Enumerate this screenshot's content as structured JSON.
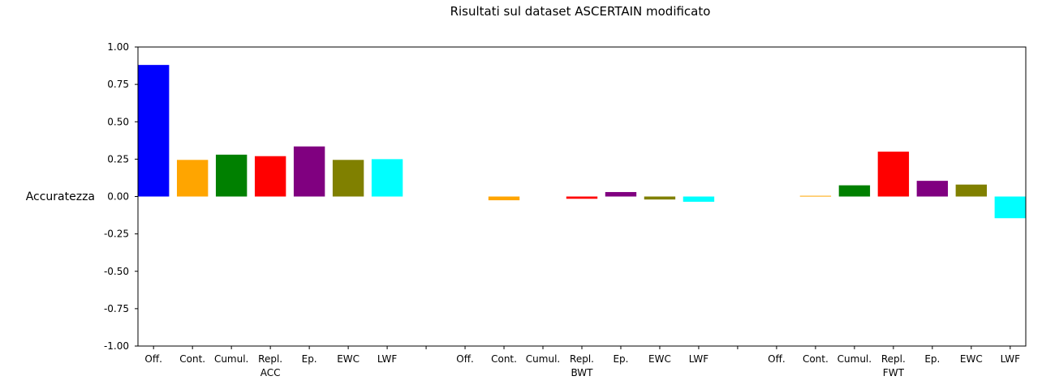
{
  "chart_data": {
    "type": "bar",
    "title": "Risultati sul dataset ASCERTAIN modificato",
    "ylabel": "Accuratezza",
    "xlabel": "",
    "ylim": [
      -1.0,
      1.0
    ],
    "yticks": [
      "1.00",
      "0.75",
      "0.50",
      "0.25",
      "0.00",
      "-0.25",
      "-0.50",
      "-0.75",
      "-1.00"
    ],
    "grid": false,
    "legend": "none",
    "groups": [
      {
        "label": "ACC",
        "categories": [
          "Off.",
          "Cont.",
          "Cumul.",
          "Repl.",
          "Ep.",
          "EWC",
          "LWF"
        ],
        "values": [
          0.88,
          0.245,
          0.28,
          0.27,
          0.335,
          0.245,
          0.25
        ]
      },
      {
        "label": "BWT",
        "categories": [
          "Off.",
          "Cont.",
          "Cumul.",
          "Repl.",
          "Ep.",
          "EWC",
          "LWF"
        ],
        "values": [
          0.0,
          -0.025,
          0.0,
          -0.015,
          0.03,
          -0.02,
          -0.035
        ]
      },
      {
        "label": "FWT",
        "categories": [
          "Off.",
          "Cont.",
          "Cumul.",
          "Repl.",
          "Ep.",
          "EWC",
          "LWF"
        ],
        "values": [
          0.0,
          0.005,
          0.075,
          0.3,
          0.105,
          0.08,
          -0.145
        ]
      }
    ],
    "colors": [
      "#0000ff",
      "#ffa500",
      "#008000",
      "#ff0000",
      "#800080",
      "#808000",
      "#00ffff"
    ]
  }
}
